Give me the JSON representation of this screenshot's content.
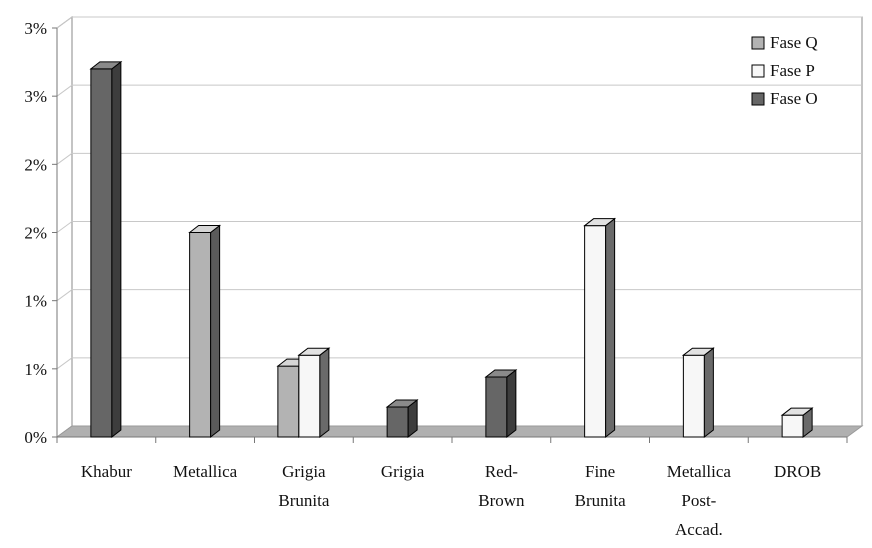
{
  "chart_data": {
    "type": "bar",
    "categories": [
      [
        "Khabur"
      ],
      [
        "Metallica"
      ],
      [
        "Grigia",
        "Brunita"
      ],
      [
        "Grigia"
      ],
      [
        "Red-",
        "Brown"
      ],
      [
        "Fine",
        "Brunita"
      ],
      [
        "Metallica",
        "Post-",
        "Accad."
      ],
      [
        "DROB"
      ]
    ],
    "series": [
      {
        "name": "Fase Q",
        "color": "#b3b3b3",
        "side": "#5a5a5a",
        "top": "#d6d6d6",
        "values": [
          0,
          1.5,
          0.52,
          0,
          0,
          0,
          0,
          0
        ]
      },
      {
        "name": "Fase P",
        "color": "#f7f7f7",
        "side": "#6a6a6a",
        "top": "#e2e2e2",
        "values": [
          0,
          0,
          0.6,
          0,
          0,
          1.55,
          0.6,
          0.16
        ]
      },
      {
        "name": "Fase O",
        "color": "#666666",
        "side": "#3d3d3d",
        "top": "#8a8a8a",
        "values": [
          2.7,
          0,
          0,
          0.22,
          0.44,
          0,
          0,
          0
        ]
      }
    ],
    "y_ticks": [
      "0%",
      "1%",
      "1%",
      "2%",
      "2%",
      "3%",
      "3%"
    ],
    "ylim": [
      0,
      3
    ],
    "grid": true,
    "legend": "top-right"
  }
}
